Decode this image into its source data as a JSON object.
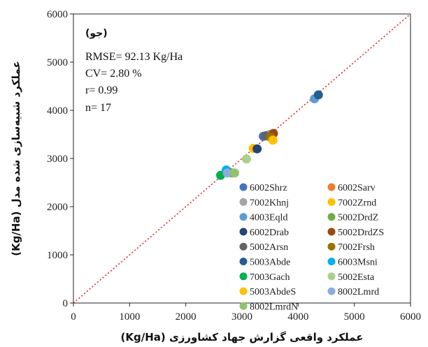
{
  "chart_data": {
    "type": "scatter",
    "xlabel": "عملکرد واقعی گزارش جهاد کشاورزی (Kg/Ha)",
    "ylabel": "عملکرد شبیه‌سازی شده مدل (Kg/Ha)",
    "xlim": [
      0,
      6000
    ],
    "ylim": [
      0,
      6000
    ],
    "x_ticks": [
      "0",
      "1000",
      "2000",
      "3000",
      "4000",
      "5000",
      "6000"
    ],
    "y_ticks": [
      "0",
      "1000",
      "2000",
      "3000",
      "4000",
      "5000",
      "6000"
    ],
    "grid": false,
    "legend_position": "bottom-right",
    "reference_line": "1:1",
    "annotations": {
      "panel": "(جو)",
      "rmse": "RMSE= 92.13 Kg/Ha",
      "cv": "CV= 2.80 %",
      "r": "r= 0.99",
      "n": "n= 17"
    },
    "series": [
      {
        "name": "6002Shrz",
        "color": "#4472c4",
        "x": 3380,
        "y": 3460
      },
      {
        "name": "6002Sarv",
        "color": "#ed7d31",
        "x": 3500,
        "y": 3500
      },
      {
        "name": "7002Khnj",
        "color": "#a5a5a5",
        "x": 3450,
        "y": 3480
      },
      {
        "name": "7002Zrnd",
        "color": "#ffc000",
        "x": 3200,
        "y": 3210
      },
      {
        "name": "4003Eqld",
        "color": "#5b9bd5",
        "x": 4290,
        "y": 4240
      },
      {
        "name": "5002DrdZ",
        "color": "#70ad47",
        "x": 2820,
        "y": 2700
      },
      {
        "name": "6002Drab",
        "color": "#264478",
        "x": 3270,
        "y": 3200
      },
      {
        "name": "5002DrdZS",
        "color": "#9e480e",
        "x": 3560,
        "y": 3520
      },
      {
        "name": "5002Arsn",
        "color": "#636363",
        "x": 3420,
        "y": 3470
      },
      {
        "name": "7002Frsh",
        "color": "#997300",
        "x": 3510,
        "y": 3440
      },
      {
        "name": "5003Abde",
        "color": "#255e91",
        "x": 4360,
        "y": 4320
      },
      {
        "name": "6003Msni",
        "color": "#00b0f0",
        "x": 2720,
        "y": 2760
      },
      {
        "name": "7003Gach",
        "color": "#00b050",
        "x": 2620,
        "y": 2650
      },
      {
        "name": "5002Esta",
        "color": "#a9d18e",
        "x": 3080,
        "y": 2990
      },
      {
        "name": "5003AbdeS",
        "color": "#ffc000",
        "x": 3550,
        "y": 3380
      },
      {
        "name": "8002Lmrd",
        "color": "#8faadc",
        "x": 2740,
        "y": 2700
      },
      {
        "name": "8002LmrdN",
        "color": "#92c36a",
        "x": 2870,
        "y": 2700
      }
    ]
  }
}
